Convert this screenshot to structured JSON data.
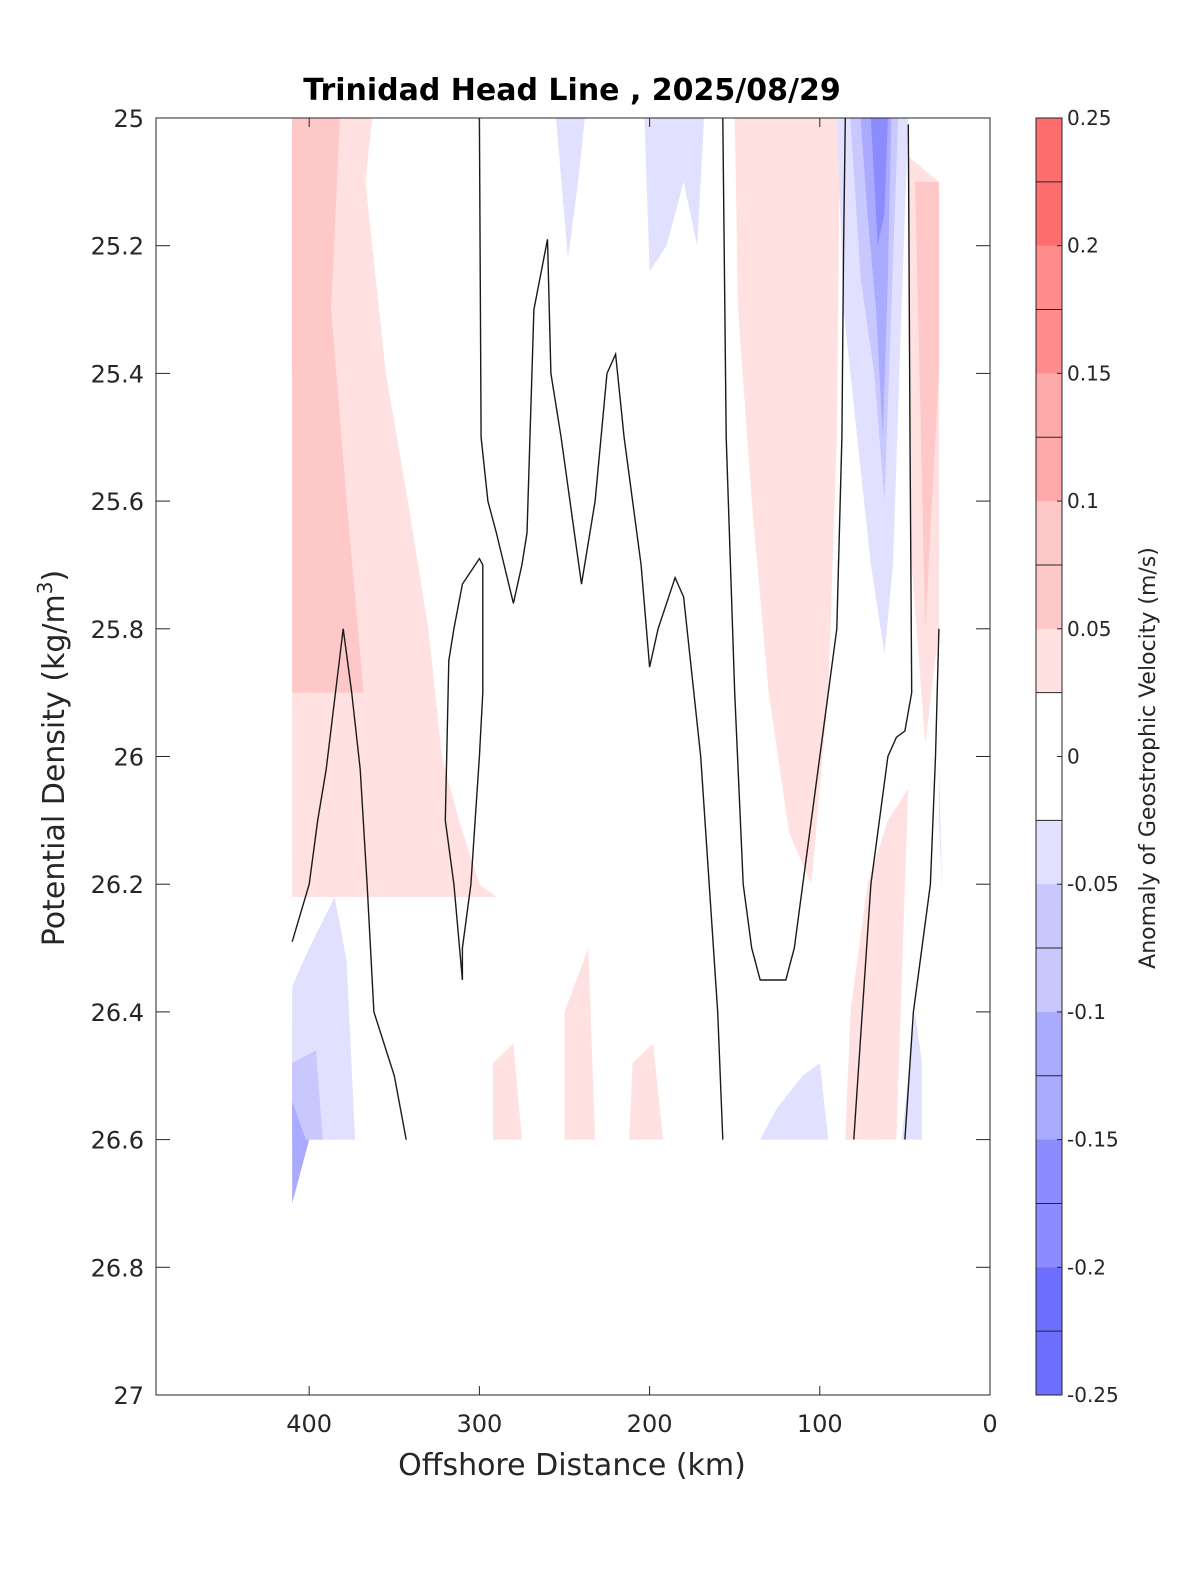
{
  "chart_data": {
    "type": "contour",
    "title": "Trinidad Head Line , 2025/08/29",
    "xlabel": "Offshore Distance (km)",
    "ylabel_main": "Potential Density (kg/m",
    "ylabel_sup": "3",
    "ylabel_end": ")",
    "xlim": [
      490,
      0
    ],
    "ylim": [
      25,
      27
    ],
    "xticks": [
      400,
      300,
      200,
      100,
      0
    ],
    "xtick_labels": [
      "400",
      "300",
      "200",
      "100",
      "0"
    ],
    "yticks": [
      25,
      25.2,
      25.4,
      25.6,
      25.8,
      26,
      26.2,
      26.4,
      26.6,
      26.8,
      27
    ],
    "ytick_labels": [
      "25",
      "25.2",
      "25.4",
      "25.6",
      "25.8",
      "26",
      "26.2",
      "26.4",
      "26.6",
      "26.8",
      "27"
    ],
    "colorbar": {
      "label": "Anomaly of Geostrophic Velocity (m/s)",
      "range": [
        -0.25,
        0.25
      ],
      "ticks": [
        0.25,
        0.2,
        0.15,
        0.1,
        0.05,
        0,
        -0.05,
        -0.1,
        -0.15,
        -0.2,
        -0.25
      ],
      "tick_labels": [
        "0.25",
        "0.2",
        "0.15",
        "0.1",
        "0.05",
        "0",
        "-0.05",
        "-0.1",
        "-0.15",
        "-0.2",
        "-0.25"
      ],
      "levels": [
        0.225,
        0.175,
        0.125,
        0.075,
        0.025,
        -0.025,
        -0.075,
        -0.125,
        -0.175,
        -0.225
      ],
      "colors": [
        "#ffffff",
        "#ffe1e1",
        "#ffc8c8",
        "#ffaaaa",
        "#ff8c8c",
        "#ff6e6e",
        "#ff5050",
        "#ff3232",
        "#ff1a1a",
        "#ff0000",
        "#e1e1ff",
        "#c8c8ff",
        "#aaaaff",
        "#8c8cff",
        "#6e6eff",
        "#5050ff",
        "#3232ff",
        "#1a1aff",
        "#0000ff"
      ]
    },
    "filled_regions": [
      {
        "name": "offshore-positive-1",
        "value": 0.03,
        "pts": [
          [
            410,
            25
          ],
          [
            363,
            25
          ],
          [
            367,
            25.1
          ],
          [
            355,
            25.4
          ],
          [
            342,
            25.6
          ],
          [
            330,
            25.8
          ],
          [
            322,
            26.0
          ],
          [
            312,
            26.1
          ],
          [
            300,
            26.2
          ],
          [
            290,
            26.22
          ],
          [
            410,
            26.22
          ]
        ]
      },
      {
        "name": "offshore-positive-2",
        "value": 0.06,
        "pts": [
          [
            410,
            25
          ],
          [
            372,
            25
          ],
          [
            375,
            25.2
          ],
          [
            365,
            25.5
          ],
          [
            352,
            25.8
          ],
          [
            340,
            26.05
          ],
          [
            325,
            26.15
          ],
          [
            410,
            26.15
          ]
        ]
      },
      {
        "name": "offshore-positive-3",
        "value": 0.09,
        "pts": [
          [
            410,
            25
          ],
          [
            382,
            25
          ],
          [
            387,
            25.3
          ],
          [
            378,
            25.6
          ],
          [
            368,
            25.9
          ],
          [
            410,
            25.9
          ]
        ]
      },
      {
        "name": "offshore-positive-4",
        "value": 0.12,
        "pts": [
          [
            410,
            25
          ],
          [
            392,
            25
          ],
          [
            396,
            25.4
          ],
          [
            410,
            25.4
          ]
        ]
      },
      {
        "name": "offshore-negative-1",
        "value": -0.03,
        "pts": [
          [
            410,
            26.36
          ],
          [
            400,
            26.3
          ],
          [
            385,
            26.22
          ],
          [
            378,
            26.32
          ],
          [
            373,
            26.6
          ],
          [
            410,
            26.6
          ]
        ]
      },
      {
        "name": "offshore-negative-2",
        "value": -0.06,
        "pts": [
          [
            410,
            26.42
          ],
          [
            395,
            26.38
          ],
          [
            388,
            26.46
          ],
          [
            384,
            26.6
          ],
          [
            410,
            26.6
          ]
        ]
      },
      {
        "name": "offshore-negative-3",
        "value": -0.09,
        "pts": [
          [
            410,
            26.48
          ],
          [
            396,
            26.46
          ],
          [
            392,
            26.6
          ],
          [
            410,
            26.6
          ]
        ]
      },
      {
        "name": "offshore-negative-4",
        "value": -0.14,
        "pts": [
          [
            410,
            26.54
          ],
          [
            402,
            26.6
          ],
          [
            400,
            26.6
          ],
          [
            410,
            26.7
          ]
        ]
      },
      {
        "name": "mid-negative-1",
        "value": -0.03,
        "pts": [
          [
            255,
            25
          ],
          [
            238,
            25
          ],
          [
            242,
            25.1
          ],
          [
            248,
            25.22
          ]
        ]
      },
      {
        "name": "mid-negative-2",
        "value": -0.03,
        "pts": [
          [
            203,
            25
          ],
          [
            168,
            25
          ],
          [
            172,
            25.2
          ],
          [
            180,
            25.1
          ],
          [
            190,
            25.2
          ],
          [
            200,
            25.24
          ]
        ]
      },
      {
        "name": "mid-positive-low-1",
        "value": 0.03,
        "pts": [
          [
            292,
            26.6
          ],
          [
            275,
            26.6
          ],
          [
            280,
            26.45
          ],
          [
            292,
            26.48
          ]
        ]
      },
      {
        "name": "mid-positive-low-2",
        "value": 0.03,
        "pts": [
          [
            250,
            26.6
          ],
          [
            232,
            26.6
          ],
          [
            236,
            26.3
          ],
          [
            250,
            26.4
          ]
        ]
      },
      {
        "name": "mid-positive-low-3",
        "value": 0.03,
        "pts": [
          [
            212,
            26.6
          ],
          [
            192,
            26.6
          ],
          [
            198,
            26.45
          ],
          [
            210,
            26.48
          ]
        ]
      },
      {
        "name": "coastal-positive-wide",
        "value": 0.03,
        "pts": [
          [
            150,
            25
          ],
          [
            88,
            25
          ],
          [
            90,
            25.5
          ],
          [
            95,
            25.9
          ],
          [
            105,
            26.2
          ],
          [
            118,
            26.12
          ],
          [
            130,
            25.9
          ],
          [
            140,
            25.6
          ],
          [
            148,
            25.3
          ]
        ]
      },
      {
        "name": "coastal-positive-core",
        "value": 0.06,
        "pts": [
          [
            110,
            25
          ],
          [
            98,
            25
          ],
          [
            100,
            25.2
          ],
          [
            105,
            25.1
          ]
        ]
      },
      {
        "name": "nearshore-negative-1",
        "value": -0.03,
        "pts": [
          [
            90,
            25
          ],
          [
            48,
            25
          ],
          [
            52,
            25.3
          ],
          [
            57,
            25.7
          ],
          [
            62,
            25.84
          ],
          [
            70,
            25.7
          ],
          [
            78,
            25.5
          ],
          [
            86,
            25.3
          ]
        ]
      },
      {
        "name": "nearshore-negative-2",
        "value": -0.08,
        "pts": [
          [
            82,
            25
          ],
          [
            54,
            25
          ],
          [
            58,
            25.3
          ],
          [
            62,
            25.6
          ],
          [
            68,
            25.4
          ],
          [
            76,
            25.25
          ]
        ]
      },
      {
        "name": "nearshore-negative-3",
        "value": -0.13,
        "pts": [
          [
            76,
            25
          ],
          [
            58,
            25
          ],
          [
            60,
            25.25
          ],
          [
            63,
            25.5
          ],
          [
            67,
            25.3
          ],
          [
            72,
            25.15
          ]
        ]
      },
      {
        "name": "nearshore-negative-4",
        "value": -0.18,
        "pts": [
          [
            70,
            25
          ],
          [
            60,
            25
          ],
          [
            62,
            25.15
          ],
          [
            66,
            25.2
          ]
        ]
      },
      {
        "name": "nearshore-positive-1",
        "value": 0.03,
        "pts": [
          [
            48,
            25.06
          ],
          [
            30,
            25.1
          ],
          [
            30,
            25.8
          ],
          [
            38,
            25.98
          ],
          [
            46,
            25.7
          ]
        ]
      },
      {
        "name": "nearshore-positive-2",
        "value": 0.1,
        "pts": [
          [
            44,
            25.1
          ],
          [
            30,
            25.1
          ],
          [
            30,
            25.4
          ],
          [
            38,
            25.8
          ]
        ]
      },
      {
        "name": "deep-nearshore-positive-1",
        "value": 0.03,
        "pts": [
          [
            85,
            26.6
          ],
          [
            55,
            26.6
          ],
          [
            50,
            26.2
          ],
          [
            48,
            26.05
          ],
          [
            60,
            26.1
          ],
          [
            72,
            26.2
          ],
          [
            82,
            26.4
          ]
        ]
      },
      {
        "name": "deep-nearshore-positive-2",
        "value": 0.06,
        "pts": [
          [
            75,
            26.6
          ],
          [
            65,
            26.6
          ],
          [
            68,
            26.45
          ]
        ]
      },
      {
        "name": "deep-nearshore-negative-1",
        "value": -0.03,
        "pts": [
          [
            52,
            26.6
          ],
          [
            40,
            26.6
          ],
          [
            40,
            26.48
          ],
          [
            44,
            26.4
          ]
        ]
      },
      {
        "name": "deep-nearshore-negative-2",
        "value": -0.03,
        "pts": [
          [
            30,
            26.1
          ],
          [
            28,
            26.22
          ],
          [
            30,
            26.0
          ]
        ]
      },
      {
        "name": "deep-mid-negative",
        "value": -0.03,
        "pts": [
          [
            135,
            26.6
          ],
          [
            95,
            26.6
          ],
          [
            100,
            26.48
          ],
          [
            110,
            26.5
          ],
          [
            125,
            26.55
          ]
        ]
      }
    ],
    "contour_lines": [
      [
        [
          410,
          26.29
        ],
        [
          400,
          26.2
        ],
        [
          395,
          26.1
        ],
        [
          390,
          26.02
        ],
        [
          380,
          25.8
        ],
        [
          375,
          25.9
        ],
        [
          370,
          26.02
        ],
        [
          366,
          26.2
        ],
        [
          362,
          26.4
        ],
        [
          350,
          26.5
        ],
        [
          343,
          26.6
        ]
      ],
      [
        [
          300,
          25
        ],
        [
          299,
          25.5
        ],
        [
          295,
          25.6
        ],
        [
          290,
          25.65
        ],
        [
          280,
          25.76
        ],
        [
          275,
          25.7
        ],
        [
          272,
          25.65
        ],
        [
          268,
          25.3
        ],
        [
          260,
          25.19
        ],
        [
          258,
          25.4
        ],
        [
          252,
          25.5
        ],
        [
          240,
          25.73
        ],
        [
          232,
          25.6
        ],
        [
          225,
          25.4
        ],
        [
          220,
          25.37
        ],
        [
          215,
          25.5
        ],
        [
          210,
          25.6
        ],
        [
          205,
          25.7
        ],
        [
          200,
          25.86
        ],
        [
          195,
          25.8
        ],
        [
          185,
          25.72
        ],
        [
          180,
          25.75
        ],
        [
          170,
          26.0
        ],
        [
          165,
          26.2
        ],
        [
          160,
          26.4
        ],
        [
          157,
          26.6
        ]
      ],
      [
        [
          310,
          26.35
        ],
        [
          315,
          26.2
        ],
        [
          320,
          26.1
        ],
        [
          318,
          25.85
        ],
        [
          315,
          25.8
        ],
        [
          310,
          25.73
        ],
        [
          300,
          25.69
        ],
        [
          298,
          25.7
        ],
        [
          298,
          25.9
        ],
        [
          300,
          26.0
        ],
        [
          305,
          26.2
        ],
        [
          310,
          26.3
        ],
        [
          310,
          26.35
        ]
      ],
      [
        [
          157,
          25
        ],
        [
          155,
          25.5
        ],
        [
          150,
          25.9
        ],
        [
          145,
          26.2
        ],
        [
          140,
          26.3
        ],
        [
          135,
          26.35
        ],
        [
          120,
          26.35
        ],
        [
          115,
          26.3
        ],
        [
          110,
          26.2
        ],
        [
          100,
          26.0
        ],
        [
          90,
          25.8
        ],
        [
          87,
          25.5
        ],
        [
          86,
          25.2
        ],
        [
          85,
          25
        ]
      ],
      [
        [
          48,
          25.01
        ],
        [
          47,
          25.5
        ],
        [
          46,
          25.9
        ],
        [
          50,
          25.96
        ],
        [
          55,
          25.97
        ],
        [
          60,
          26.0
        ],
        [
          65,
          26.1
        ],
        [
          70,
          26.2
        ],
        [
          75,
          26.4
        ],
        [
          80,
          26.6
        ]
      ],
      [
        [
          30,
          25.8
        ],
        [
          32,
          26.0
        ],
        [
          35,
          26.2
        ],
        [
          40,
          26.3
        ],
        [
          45,
          26.4
        ],
        [
          50,
          26.6
        ]
      ]
    ]
  }
}
